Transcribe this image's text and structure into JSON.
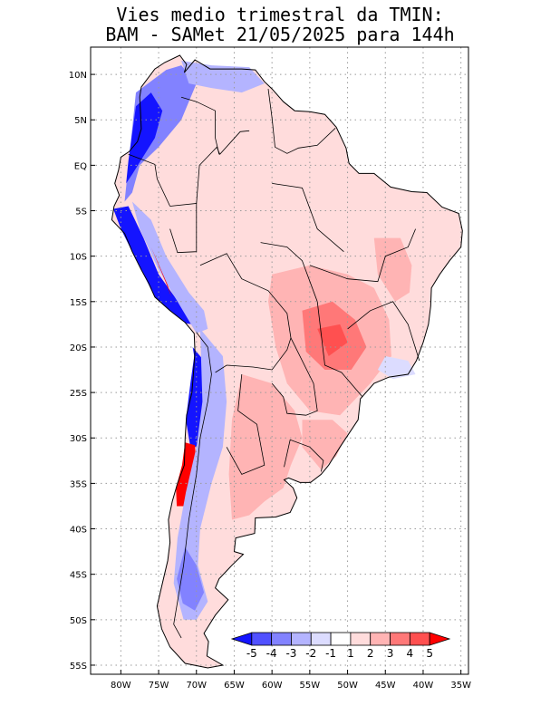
{
  "title": {
    "line1": "Vies medio trimestral da TMIN:",
    "line2": "BAM - SAMet 21/05/2025  para 144h"
  },
  "map": {
    "lon_range": [
      -84,
      -34
    ],
    "lat_range": [
      -56,
      13
    ],
    "grid": "dotted",
    "lat_ticks": [
      {
        "value": 10,
        "label": "10N"
      },
      {
        "value": 5,
        "label": "5N"
      },
      {
        "value": 0,
        "label": "EQ"
      },
      {
        "value": -5,
        "label": "5S"
      },
      {
        "value": -10,
        "label": "10S"
      },
      {
        "value": -15,
        "label": "15S"
      },
      {
        "value": -20,
        "label": "20S"
      },
      {
        "value": -25,
        "label": "25S"
      },
      {
        "value": -30,
        "label": "30S"
      },
      {
        "value": -35,
        "label": "35S"
      },
      {
        "value": -40,
        "label": "40S"
      },
      {
        "value": -45,
        "label": "45S"
      },
      {
        "value": -50,
        "label": "50S"
      },
      {
        "value": -55,
        "label": "55S"
      }
    ],
    "lon_ticks": [
      {
        "value": -80,
        "label": "80W"
      },
      {
        "value": -75,
        "label": "75W"
      },
      {
        "value": -70,
        "label": "70W"
      },
      {
        "value": -65,
        "label": "65W"
      },
      {
        "value": -60,
        "label": "60W"
      },
      {
        "value": -55,
        "label": "55W"
      },
      {
        "value": -50,
        "label": "50W"
      },
      {
        "value": -45,
        "label": "45W"
      },
      {
        "value": -40,
        "label": "40W"
      },
      {
        "value": -35,
        "label": "35W"
      }
    ]
  },
  "colorbar": {
    "labels": [
      "-5",
      "-4",
      "-3",
      "-2",
      "-1",
      "1",
      "2",
      "3",
      "4",
      "5"
    ],
    "colors": [
      "#1414ff",
      "#5050ff",
      "#8282ff",
      "#b4b4ff",
      "#dcdcff",
      "#ffffff",
      "#ffdcdc",
      "#ffb4b4",
      "#ff7878",
      "#ff5050",
      "#ff0000"
    ]
  }
}
